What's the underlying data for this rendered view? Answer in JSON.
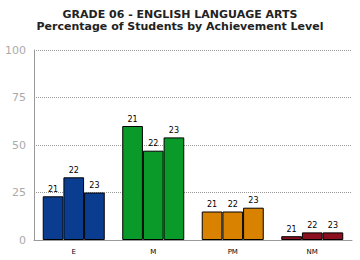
{
  "chart_data": {
    "type": "bar",
    "title": "GRADE 06 - ENGLISH LANGUAGE ARTS",
    "subtitle": "Percentage of Students by Achievement Level",
    "categories": [
      "E",
      "M",
      "PM",
      "NM"
    ],
    "colors": [
      "#0a3d8f",
      "#0a9a2a",
      "#d98200",
      "#8b0f1f"
    ],
    "series": [
      {
        "name": "21",
        "values": [
          23,
          60,
          15,
          2
        ]
      },
      {
        "name": "22",
        "values": [
          33,
          47,
          15,
          4
        ]
      },
      {
        "name": "23",
        "values": [
          25,
          54,
          17,
          4
        ]
      }
    ],
    "ylim": [
      0,
      100
    ],
    "yticks": [
      0,
      25,
      50,
      75,
      100
    ],
    "grid": true
  }
}
